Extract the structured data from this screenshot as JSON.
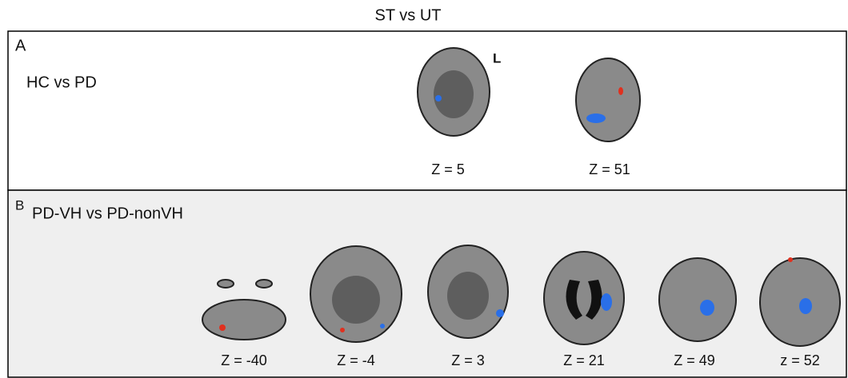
{
  "title": "ST vs UT",
  "panels": [
    {
      "letter": "A",
      "comparison": "HC vs PD",
      "orientation": "L",
      "slices": [
        "Z = 5",
        "Z = 51"
      ]
    },
    {
      "letter": "B",
      "comparison": "PD-VH vs PD-nonVH",
      "slices": [
        "Z = -40",
        "Z = -4",
        "Z = 3",
        "Z = 21",
        "Z = 49",
        "z = 52"
      ]
    }
  ]
}
